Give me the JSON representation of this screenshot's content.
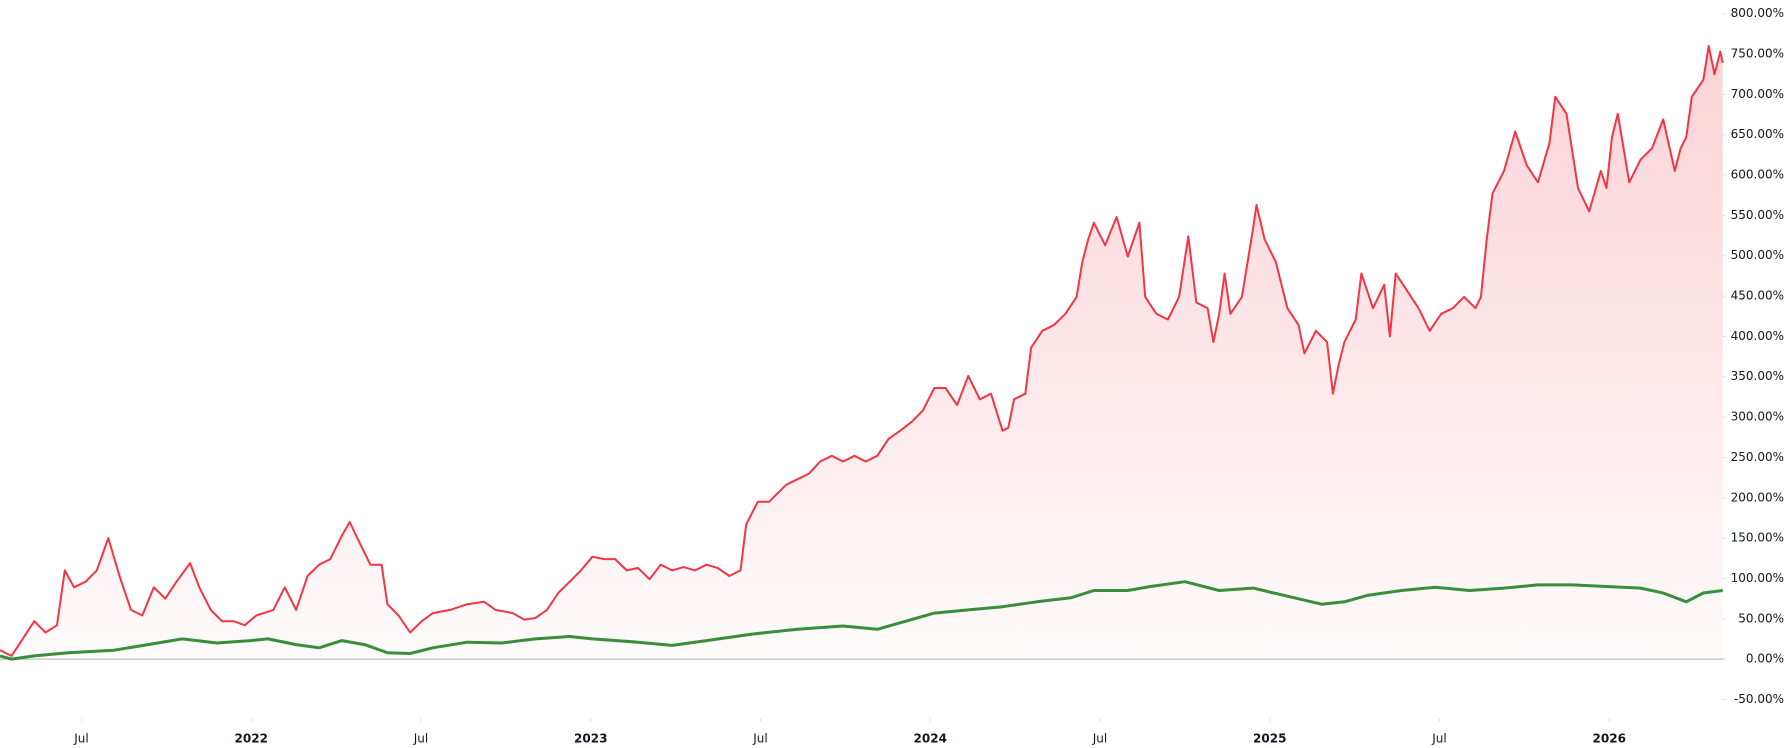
{
  "chart_data": {
    "type": "line",
    "xlim": [
      2021.26,
      2026.335
    ],
    "xticks": [
      {
        "value": 2021.5,
        "label": "Jul"
      },
      2022,
      {
        "value": 2022.5,
        "label": "Jul"
      },
      2023,
      {
        "value": 2023.5,
        "label": "Jul"
      },
      2024,
      {
        "value": 2024.5,
        "label": "Jul"
      },
      2025,
      {
        "value": 2025.5,
        "label": "Jul"
      },
      2026
    ],
    "ylim": [
      -73,
      817
    ],
    "yticks": [
      {
        "value": -50,
        "label": "-50.00%"
      },
      {
        "value": 0,
        "label": "0.00%"
      },
      {
        "value": 50,
        "label": "50.00%"
      },
      {
        "value": 100,
        "label": "100.00%"
      },
      {
        "value": 150,
        "label": "150.00%"
      },
      {
        "value": 200,
        "label": "200.00%"
      },
      {
        "value": 250,
        "label": "250.00%"
      },
      {
        "value": 300,
        "label": "300.00%"
      },
      {
        "value": 350,
        "label": "350.00%"
      },
      {
        "value": 400,
        "label": "400.00%"
      },
      {
        "value": 450,
        "label": "450.00%"
      },
      {
        "value": 500,
        "label": "500.00%"
      },
      {
        "value": 550,
        "label": "550.00%"
      },
      {
        "value": 600,
        "label": "600.00%"
      },
      {
        "value": 650,
        "label": "650.00%"
      },
      {
        "value": 700,
        "label": "700.00%"
      },
      {
        "value": 750,
        "label": "750.00%"
      },
      {
        "value": 800,
        "label": "800.00%"
      }
    ],
    "series": [
      {
        "color": "#f23645",
        "area": true,
        "x": [
          2021.26,
          2021.294,
          2021.327,
          2021.361,
          2021.394,
          2021.428,
          2021.451,
          2021.478,
          2021.512,
          2021.545,
          2021.579,
          2021.612,
          2021.646,
          2021.679,
          2021.713,
          2021.747,
          2021.78,
          2021.82,
          2021.847,
          2021.881,
          2021.914,
          2021.948,
          2021.981,
          2022.015,
          2022.065,
          2022.099,
          2022.132,
          2022.166,
          2022.2,
          2022.233,
          2022.267,
          2022.29,
          2022.317,
          2022.351,
          2022.384,
          2022.401,
          2022.434,
          2022.468,
          2022.502,
          2022.535,
          2022.586,
          2022.636,
          2022.686,
          2022.72,
          2022.77,
          2022.804,
          2022.837,
          2022.871,
          2022.904,
          2022.938,
          2022.971,
          2023.005,
          2023.039,
          2023.072,
          2023.106,
          2023.139,
          2023.173,
          2023.206,
          2023.24,
          2023.273,
          2023.307,
          2023.341,
          2023.374,
          2023.408,
          2023.441,
          2023.458,
          2023.475,
          2023.492,
          2023.525,
          2023.575,
          2023.609,
          2023.643,
          2023.676,
          2023.71,
          2023.743,
          2023.777,
          2023.81,
          2023.844,
          2023.877,
          2023.911,
          2023.945,
          2023.978,
          2024.012,
          2024.045,
          2024.079,
          2024.112,
          2024.146,
          2024.179,
          2024.213,
          2024.23,
          2024.247,
          2024.28,
          2024.297,
          2024.33,
          2024.364,
          2024.398,
          2024.431,
          2024.448,
          2024.465,
          2024.482,
          2024.515,
          2024.549,
          2024.582,
          2024.616,
          2024.633,
          2024.666,
          2024.7,
          2024.733,
          2024.76,
          2024.784,
          2024.817,
          2024.834,
          2024.851,
          2024.867,
          2024.884,
          2024.918,
          2024.951,
          2024.961,
          2024.985,
          2025.018,
          2025.052,
          2025.085,
          2025.102,
          2025.136,
          2025.169,
          2025.186,
          2025.203,
          2025.22,
          2025.253,
          2025.27,
          2025.304,
          2025.337,
          2025.354,
          2025.371,
          2025.404,
          2025.438,
          2025.471,
          2025.505,
          2025.539,
          2025.572,
          2025.606,
          2025.622,
          2025.639,
          2025.656,
          2025.673,
          2025.69,
          2025.723,
          2025.757,
          2025.79,
          2025.824,
          2025.841,
          2025.874,
          2025.908,
          2025.941,
          2025.975,
          2025.992,
          2026.008,
          2026.025,
          2026.059,
          2026.092,
          2026.126,
          2026.159,
          2026.193,
          2026.21,
          2026.227,
          2026.243,
          2026.277,
          2026.293,
          2026.31,
          2026.327,
          2026.334
        ],
        "values": [
          11,
          4,
          25,
          47,
          33,
          42,
          110,
          89,
          96,
          110,
          150,
          103,
          61,
          54,
          89,
          75,
          96,
          119,
          89,
          61,
          47,
          47,
          42,
          54,
          61,
          89,
          61,
          103,
          117,
          124,
          153,
          170,
          146,
          117,
          117,
          68,
          54,
          33,
          47,
          57,
          61,
          68,
          71,
          61,
          57,
          49,
          51,
          61,
          82,
          96,
          110,
          127,
          124,
          124,
          110,
          113,
          99,
          117,
          110,
          114,
          110,
          117,
          113,
          103,
          110,
          167,
          181,
          195,
          195,
          216,
          223,
          230,
          245,
          252,
          245,
          252,
          245,
          252,
          273,
          283,
          294,
          308,
          336,
          336,
          315,
          351,
          322,
          329,
          283,
          287,
          322,
          329,
          386,
          407,
          414,
          428,
          449,
          492,
          520,
          541,
          513,
          548,
          499,
          541,
          449,
          428,
          421,
          449,
          524,
          442,
          435,
          393,
          428,
          478,
          428,
          449,
          534,
          563,
          520,
          492,
          435,
          414,
          379,
          407,
          393,
          329,
          365,
          393,
          421,
          478,
          435,
          464,
          400,
          478,
          457,
          435,
          407,
          428,
          435,
          449,
          435,
          449,
          520,
          577,
          591,
          605,
          654,
          612,
          591,
          640,
          697,
          676,
          584,
          555,
          605,
          584,
          647,
          676,
          591,
          619,
          633,
          669,
          605,
          633,
          647,
          697,
          718,
          760,
          725,
          753,
          739
        ]
      },
      {
        "color": "#388e3c",
        "x": [
          2021.26,
          2021.294,
          2021.361,
          2021.461,
          2021.596,
          2021.696,
          2021.797,
          2021.898,
          2021.998,
          2022.049,
          2022.132,
          2022.2,
          2022.267,
          2022.334,
          2022.401,
          2022.468,
          2022.535,
          2022.636,
          2022.737,
          2022.837,
          2022.938,
          2023.005,
          2023.139,
          2023.24,
          2023.341,
          2023.475,
          2023.609,
          2023.743,
          2023.844,
          2023.945,
          2024.012,
          2024.112,
          2024.213,
          2024.314,
          2024.414,
          2024.482,
          2024.582,
          2024.649,
          2024.75,
          2024.851,
          2024.951,
          2025.052,
          2025.153,
          2025.22,
          2025.287,
          2025.388,
          2025.488,
          2025.589,
          2025.69,
          2025.79,
          2025.891,
          2025.992,
          2026.092,
          2026.159,
          2026.227,
          2026.277,
          2026.334
        ],
        "values": [
          4,
          0,
          4,
          8,
          11,
          18,
          25,
          20,
          23,
          25,
          18,
          14,
          23,
          18,
          8,
          7,
          14,
          21,
          20,
          25,
          28,
          25,
          21,
          17,
          23,
          31,
          37,
          41,
          37,
          49,
          57,
          61,
          65,
          71,
          76,
          85,
          85,
          90,
          96,
          85,
          88,
          78,
          68,
          71,
          79,
          85,
          89,
          85,
          88,
          92,
          92,
          90,
          88,
          82,
          71,
          82,
          85
        ]
      }
    ]
  }
}
